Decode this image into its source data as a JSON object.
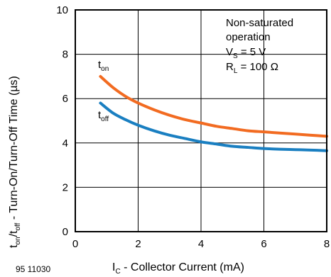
{
  "figure_number": "95 11030",
  "chart_data": {
    "type": "line",
    "xlabel": {
      "main": "I",
      "sub": "C",
      "rest": " - Collector Current (mA)"
    },
    "ylabel": {
      "t1": "t",
      "s1": "on",
      "t2": "/t",
      "s2": "off",
      "rest": " - Turn-On/Turn-Off Time (µs)"
    },
    "xlim": [
      0,
      8
    ],
    "ylim": [
      0,
      10
    ],
    "xticks": [
      0,
      2,
      4,
      6,
      8
    ],
    "yticks": [
      0,
      2,
      4,
      6,
      8,
      10
    ],
    "grid": true,
    "annotation": {
      "line1": "Non-saturated",
      "line2": "operation",
      "vs_main": "V",
      "vs_sub": "S",
      "vs_rest": " = 5 V",
      "rl_main": "R",
      "rl_sub": "L",
      "rl_rest": " = 100 Ω"
    },
    "series": [
      {
        "name": "on",
        "label_main": "t",
        "label_sub": "on",
        "color": "#f26b21",
        "x": [
          0.8,
          1.2,
          1.6,
          2.0,
          2.5,
          3.0,
          3.5,
          4.0,
          4.5,
          5.0,
          5.5,
          6.0,
          6.5,
          7.0,
          7.5,
          8.0
        ],
        "y": [
          7.0,
          6.5,
          6.1,
          5.8,
          5.5,
          5.25,
          5.05,
          4.9,
          4.75,
          4.65,
          4.55,
          4.5,
          4.45,
          4.4,
          4.35,
          4.3
        ]
      },
      {
        "name": "off",
        "label_main": "t",
        "label_sub": "off",
        "color": "#1a7fc1",
        "x": [
          0.8,
          1.2,
          1.6,
          2.0,
          2.5,
          3.0,
          3.5,
          4.0,
          4.5,
          5.0,
          5.5,
          6.0,
          6.5,
          7.0,
          7.5,
          8.0
        ],
        "y": [
          5.8,
          5.35,
          5.05,
          4.8,
          4.55,
          4.35,
          4.2,
          4.05,
          3.95,
          3.85,
          3.8,
          3.75,
          3.72,
          3.7,
          3.68,
          3.65
        ]
      }
    ]
  }
}
